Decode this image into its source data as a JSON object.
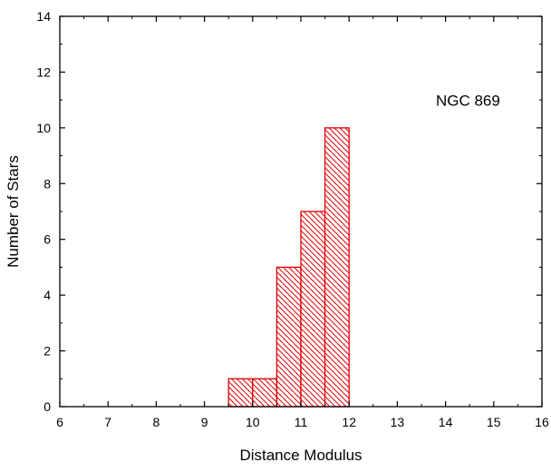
{
  "chart_data": {
    "type": "bar",
    "title": "",
    "xlabel": "Distance Modulus",
    "ylabel": "Number of Stars",
    "xlim": [
      6,
      16
    ],
    "ylim": [
      0,
      14
    ],
    "x_ticks": [
      6,
      7,
      8,
      9,
      10,
      11,
      12,
      13,
      14,
      15,
      16
    ],
    "y_ticks": [
      0,
      2,
      4,
      6,
      8,
      10,
      12,
      14
    ],
    "grid": false,
    "bin_width": 0.5,
    "bins": [
      {
        "start": 9.5,
        "end": 10.0,
        "value": 1
      },
      {
        "start": 10.0,
        "end": 10.5,
        "value": 1
      },
      {
        "start": 10.5,
        "end": 11.0,
        "value": 5
      },
      {
        "start": 11.0,
        "end": 11.5,
        "value": 7
      },
      {
        "start": 11.5,
        "end": 12.0,
        "value": 10
      }
    ],
    "annotation": {
      "text": "NGC 869",
      "x": 13.8,
      "y": 10.8
    },
    "bar_color": "#e00000",
    "bar_fill": "diagonal-hatch"
  }
}
